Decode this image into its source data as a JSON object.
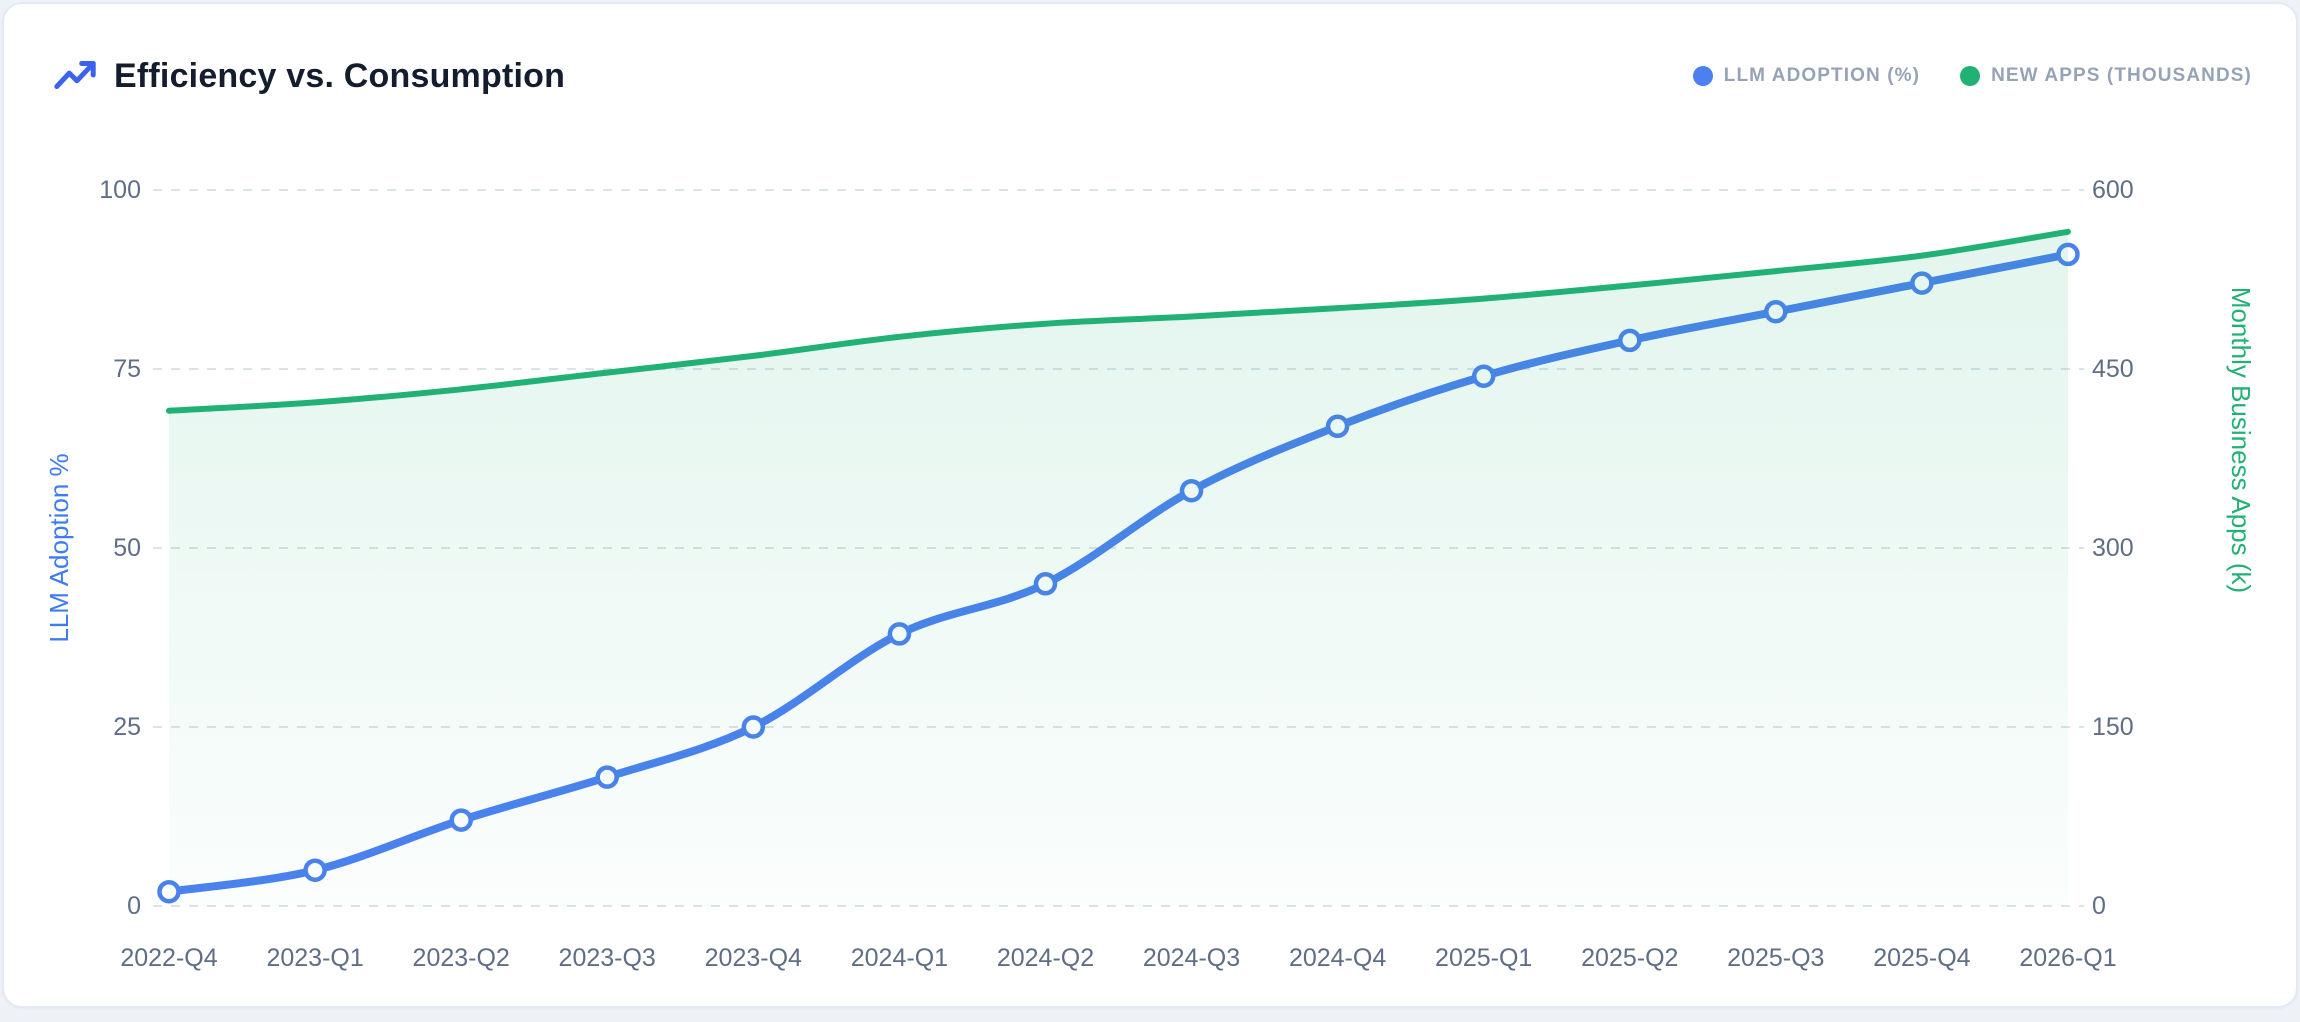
{
  "page": {
    "background": "#eef2f7"
  },
  "card": {
    "background": "#ffffff",
    "border_color": "#e4eaf1"
  },
  "header": {
    "title": "Efficiency vs. Consumption",
    "title_icon": "trending-up-icon",
    "title_icon_color": "#3c63f0",
    "legend_items": [
      {
        "label": "LLM ADOPTION (%)",
        "color": "#4a80f0"
      },
      {
        "label": "NEW APPS (THOUSANDS)",
        "color": "#21b175"
      }
    ]
  },
  "chart_data": {
    "type": "line",
    "title": "Efficiency vs. Consumption",
    "categories": [
      "2022-Q4",
      "2023-Q1",
      "2023-Q2",
      "2023-Q3",
      "2023-Q4",
      "2024-Q1",
      "2024-Q2",
      "2024-Q3",
      "2024-Q4",
      "2025-Q1",
      "2025-Q2",
      "2025-Q3",
      "2025-Q4",
      "2026-Q1"
    ],
    "series": [
      {
        "name": "LLM ADOPTION (%)",
        "axis": "left",
        "color": "#4a80f0",
        "line_width": 8,
        "markers": true,
        "area": false,
        "values": [
          2,
          5,
          12,
          18,
          25,
          38,
          45,
          58,
          67,
          74,
          79,
          83,
          87,
          91
        ]
      },
      {
        "name": "NEW APPS (THOUSANDS)",
        "axis": "right",
        "color": "#21b175",
        "line_width": 6,
        "markers": false,
        "area": true,
        "area_fill_top": "rgba(33,177,117,0.13)",
        "area_fill_bottom": "rgba(33,177,117,0.02)",
        "values": [
          415,
          422,
          433,
          447,
          461,
          477,
          488,
          494,
          501,
          509,
          520,
          532,
          545,
          565
        ]
      }
    ],
    "left_axis": {
      "label": "LLM Adoption %",
      "color": "#3e7bf5",
      "ticks": [
        0,
        25,
        50,
        75,
        100
      ],
      "range": [
        0,
        100
      ]
    },
    "right_axis": {
      "label": "Monthly Business Apps (k)",
      "color": "#21b175",
      "ticks": [
        0,
        150,
        300,
        450,
        600
      ],
      "range": [
        0,
        600
      ]
    },
    "grid": {
      "horizontal": true,
      "vertical": false,
      "style": "dashed",
      "color": "#dbe2ea"
    },
    "legend_position": "top-right"
  }
}
